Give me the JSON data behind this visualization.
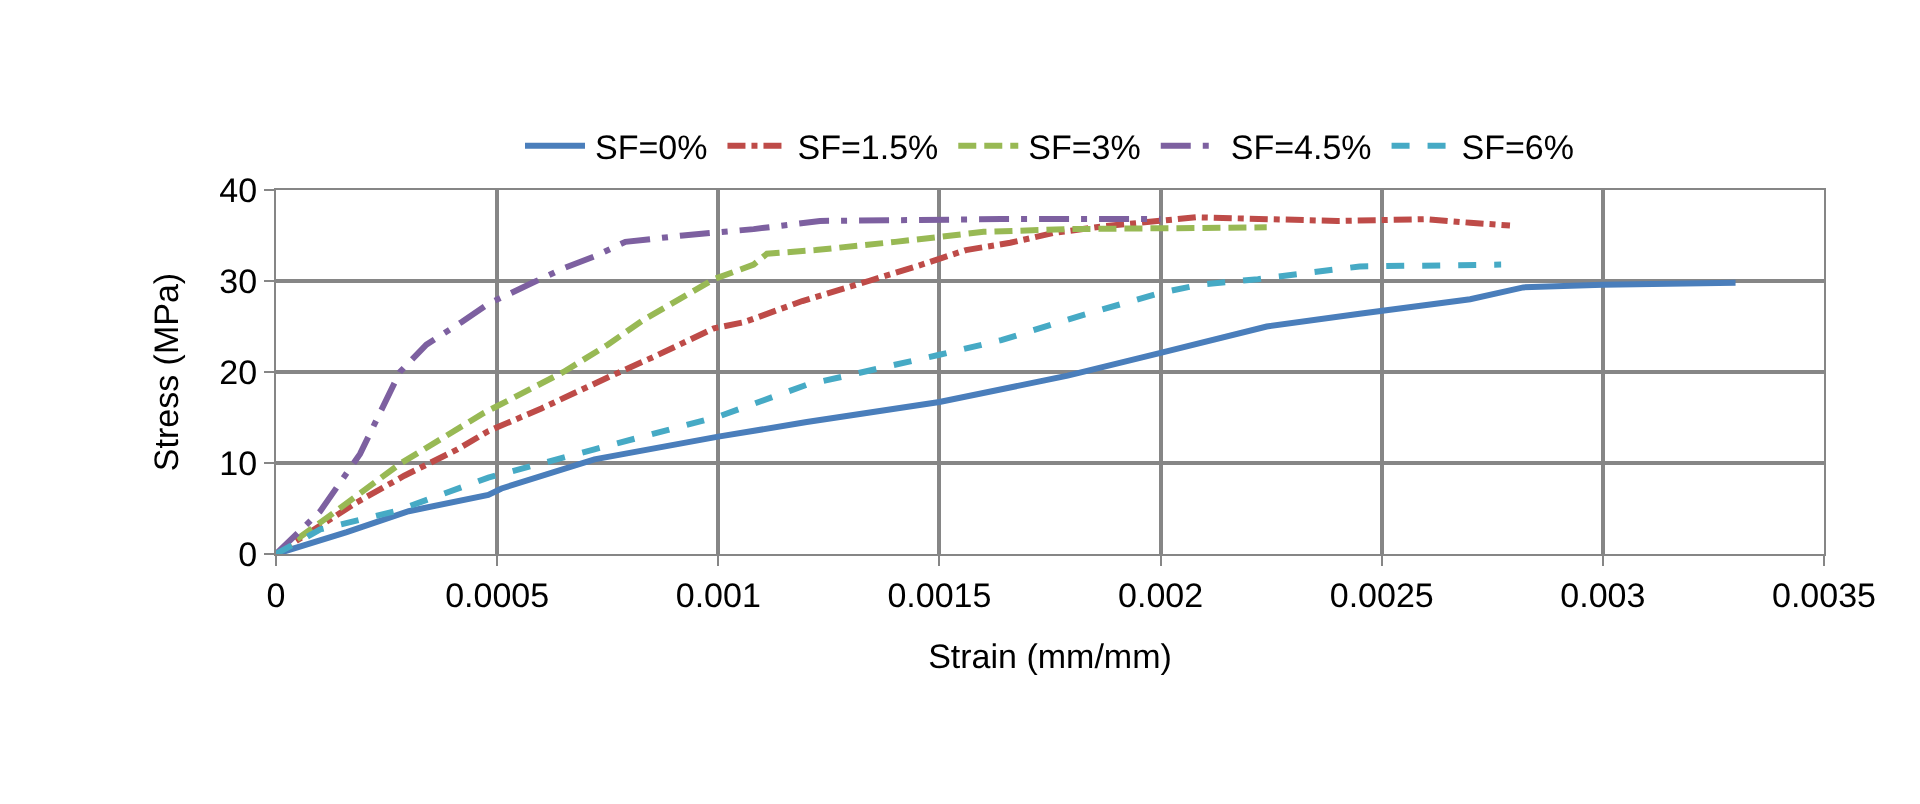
{
  "chart_data": {
    "type": "line",
    "xlabel": "Strain (mm/mm)",
    "ylabel": "Stress (MPa)",
    "xlim": [
      0,
      0.0035
    ],
    "xticks": [
      0,
      0.0005,
      0.001,
      0.0015,
      0.002,
      0.0025,
      0.003,
      0.0035
    ],
    "ylim": [
      0,
      40
    ],
    "yticks": [
      0,
      10,
      20,
      30,
      40
    ],
    "grid": true,
    "legend": "top",
    "marker": "none",
    "series": [
      {
        "name": "SF=0%",
        "color": "#4a7ebb",
        "line_style": "solid",
        "x": [
          0,
          0.00016,
          0.0003,
          0.00048,
          0.00051,
          0.00072,
          0.001,
          0.0012,
          0.0015,
          0.00179,
          0.002,
          0.00224,
          0.00245,
          0.0027,
          0.00282,
          0.003,
          0.0033
        ],
        "values": [
          0,
          2.4,
          4.7,
          6.5,
          7.2,
          10.4,
          12.9,
          14.5,
          16.7,
          19.6,
          22.1,
          25,
          26.4,
          28,
          29.3,
          29.6,
          29.8
        ]
      },
      {
        "name": "SF=1.5%",
        "color": "#be4b48",
        "line_style": "dashdot",
        "x": [
          0,
          0.00018,
          0.00029,
          0.00041,
          0.00048,
          0.0006,
          0.00075,
          0.00086,
          0.00099,
          0.00106,
          0.00119,
          0.00134,
          0.00146,
          0.00156,
          0.00166,
          0.00176,
          0.00187,
          0.00208,
          0.0024,
          0.0026,
          0.0027,
          0.00279
        ],
        "values": [
          0,
          5.6,
          8.6,
          11.5,
          13.5,
          16,
          19.4,
          21.8,
          24.8,
          25.5,
          27.8,
          30,
          31.8,
          33.4,
          34.2,
          35.3,
          36,
          37,
          36.6,
          36.8,
          36.4,
          36.1
        ]
      },
      {
        "name": "SF=3%",
        "color": "#98b954",
        "line_style": "longdash",
        "x": [
          0,
          0.00011,
          0.00028,
          0.00047,
          0.00065,
          0.00075,
          0.00083,
          0.00099,
          0.00108,
          0.00111,
          0.00122,
          0.0014,
          0.0016,
          0.00179,
          0.00224
        ],
        "values": [
          0,
          3.8,
          9.9,
          15.5,
          20,
          23,
          25.7,
          30.2,
          31.8,
          33,
          33.4,
          34.3,
          35.4,
          35.7,
          35.9
        ]
      },
      {
        "name": "SF=4.5%",
        "color": "#7d60a0",
        "line_style": "longdashdot",
        "x": [
          0,
          0.0001,
          0.00019,
          0.00028,
          0.00034,
          0.00042,
          0.00048,
          0.00058,
          0.00065,
          0.00072,
          0.00079,
          0.00092,
          0.00108,
          0.00123,
          0.00164,
          0.002
        ],
        "values": [
          0,
          4.7,
          11,
          20,
          23,
          25.5,
          27.5,
          29.8,
          31.4,
          32.7,
          34.3,
          35,
          35.7,
          36.6,
          36.8,
          36.8
        ]
      },
      {
        "name": "SF=6%",
        "color": "#46aac5",
        "line_style": "dash",
        "x": [
          0,
          0.0001,
          0.00027,
          0.00048,
          0.00072,
          0.001,
          0.0012,
          0.0015,
          0.00164,
          0.00182,
          0.002,
          0.00209,
          0.00222,
          0.00245,
          0.00277
        ],
        "values": [
          0,
          2.7,
          4.7,
          8.4,
          11.5,
          15.1,
          18.6,
          21.9,
          23.5,
          26.2,
          28.7,
          29.6,
          30.2,
          31.6,
          31.8
        ]
      }
    ]
  }
}
